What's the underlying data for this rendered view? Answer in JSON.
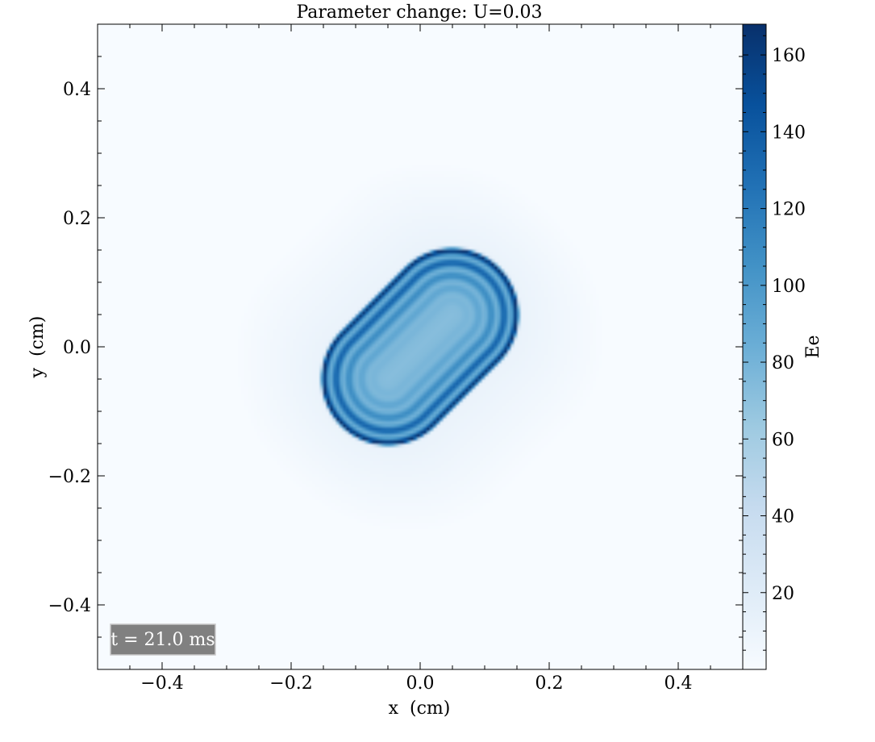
{
  "chart_data": {
    "type": "heatmap",
    "title": "Parameter change: U=0.03",
    "xlabel": "x  (cm)",
    "ylabel": "y  (cm)",
    "xlim": [
      -0.5,
      0.5
    ],
    "ylim": [
      -0.5,
      0.5
    ],
    "xticks": [
      -0.4,
      -0.2,
      0.0,
      0.2,
      0.4
    ],
    "xtick_labels": [
      "−0.4",
      "−0.2",
      "0.0",
      "0.2",
      "0.4"
    ],
    "yticks": [
      -0.4,
      -0.2,
      0.0,
      0.2,
      0.4
    ],
    "ytick_labels": [
      "−0.4",
      "−0.2",
      "0.0",
      "0.2",
      "0.4"
    ],
    "colorbar": {
      "label": "Ee",
      "colormap": "Blues",
      "range": [
        0,
        168
      ],
      "ticks": [
        20,
        40,
        60,
        80,
        100,
        120,
        140,
        160
      ],
      "tick_labels": [
        "20",
        "40",
        "60",
        "80",
        "100",
        "120",
        "140",
        "160"
      ]
    },
    "annotation": "t = 21.0 ms",
    "field": {
      "description_of_pattern": "concentric ring pattern in a rotated stadium shape",
      "center": [
        0.0,
        0.0
      ],
      "rotation_deg": 45,
      "half_length": 0.17,
      "half_width": 0.1,
      "peak_value": 168,
      "interior_value": 85,
      "ring_count": 5
    },
    "colors": {
      "cmap_low": "#f7fbff",
      "cmap_mid": "#6baed6",
      "cmap_high": "#08306b",
      "annotation_bg": "#808080"
    }
  }
}
